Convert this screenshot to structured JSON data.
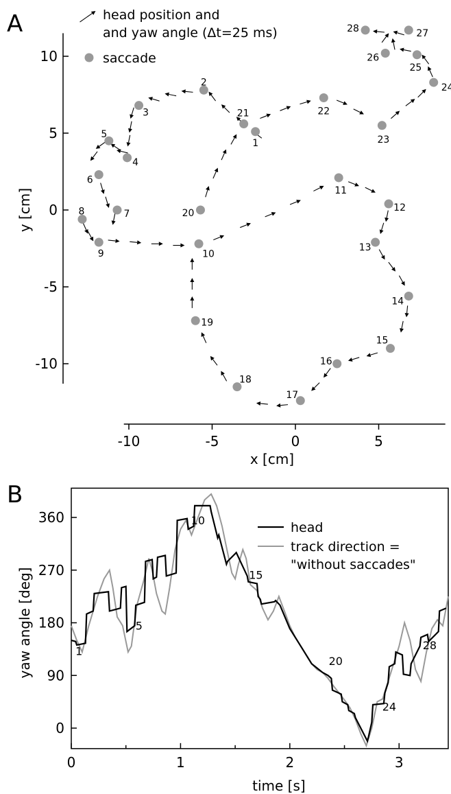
{
  "panel_a": {
    "letter": "A",
    "legend": {
      "arrow_line1": "head position and",
      "arrow_line2": "and yaw angle (Δt=25 ms)",
      "dot_label": "saccade"
    },
    "colors": {
      "arrows": "#000000",
      "saccade": "#999999"
    },
    "chart_data": {
      "type": "scatter",
      "xlabel": "x [cm]",
      "ylabel": "y [cm]",
      "xlim": [
        -10.3,
        9
      ],
      "ylim": [
        -11.3,
        11.5
      ],
      "xticks": [
        -10,
        -5,
        0,
        5
      ],
      "yticks": [
        -10,
        -5,
        0,
        5,
        10
      ],
      "grid": false,
      "saccades": [
        {
          "label": "1",
          "x": -2.4,
          "y": 5.1
        },
        {
          "label": "2",
          "x": -5.5,
          "y": 7.8
        },
        {
          "label": "3",
          "x": -9.4,
          "y": 6.8
        },
        {
          "label": "4",
          "x": -10.1,
          "y": 3.4
        },
        {
          "label": "5",
          "x": -11.2,
          "y": 4.5
        },
        {
          "label": "6",
          "x": -11.8,
          "y": 2.3
        },
        {
          "label": "7",
          "x": -10.7,
          "y": 0.0
        },
        {
          "label": "8",
          "x": -12.8,
          "y": -0.6
        },
        {
          "label": "9",
          "x": -11.8,
          "y": -2.1
        },
        {
          "label": "10",
          "x": -5.8,
          "y": -2.2
        },
        {
          "label": "11",
          "x": 2.6,
          "y": 2.1
        },
        {
          "label": "12",
          "x": 5.6,
          "y": 0.4
        },
        {
          "label": "13",
          "x": 4.8,
          "y": -2.1
        },
        {
          "label": "14",
          "x": 6.8,
          "y": -5.6
        },
        {
          "label": "15",
          "x": 5.7,
          "y": -9.0
        },
        {
          "label": "16",
          "x": 2.5,
          "y": -10.0
        },
        {
          "label": "17",
          "x": 0.3,
          "y": -12.4
        },
        {
          "label": "18",
          "x": -3.5,
          "y": -11.5
        },
        {
          "label": "19",
          "x": -6.0,
          "y": -7.2
        },
        {
          "label": "20",
          "x": -5.7,
          "y": 0.0
        },
        {
          "label": "21",
          "x": -3.1,
          "y": 5.6
        },
        {
          "label": "22",
          "x": 1.7,
          "y": 7.3
        },
        {
          "label": "23",
          "x": 5.2,
          "y": 5.5
        },
        {
          "label": "24",
          "x": 8.3,
          "y": 8.3
        },
        {
          "label": "25",
          "x": 7.3,
          "y": 10.1
        },
        {
          "label": "26",
          "x": 5.4,
          "y": 10.2
        },
        {
          "label": "27",
          "x": 6.8,
          "y": 11.7
        },
        {
          "label": "28",
          "x": 4.2,
          "y": 11.7
        }
      ],
      "arrows": [
        {
          "x": -2.3,
          "y": 4.9,
          "u": -0.8,
          "v": 0.6
        },
        {
          "x": -3.3,
          "y": 5.8,
          "u": -0.7,
          "v": 0.7
        },
        {
          "x": -4.2,
          "y": 6.6,
          "u": -0.7,
          "v": 0.7
        },
        {
          "x": -5.0,
          "y": 7.4,
          "u": -0.6,
          "v": 0.8
        },
        {
          "x": -6.5,
          "y": 7.7,
          "u": -1.0,
          "v": 0.1
        },
        {
          "x": -7.5,
          "y": 7.5,
          "u": -1.0,
          "v": 0.2
        },
        {
          "x": -8.5,
          "y": 7.2,
          "u": -1.0,
          "v": 0.3
        },
        {
          "x": -9.8,
          "y": 6.3,
          "u": -0.3,
          "v": -1.0
        },
        {
          "x": -9.9,
          "y": 5.4,
          "u": -0.2,
          "v": -1.0
        },
        {
          "x": -10.0,
          "y": 4.5,
          "u": -0.2,
          "v": -1.0
        },
        {
          "x": -10.4,
          "y": 3.8,
          "u": -0.8,
          "v": 0.2
        },
        {
          "x": -10.8,
          "y": 4.1,
          "u": -0.6,
          "v": 0.4
        },
        {
          "x": -11.7,
          "y": 4.2,
          "u": -0.7,
          "v": -0.5
        },
        {
          "x": -12.1,
          "y": 3.5,
          "u": -0.6,
          "v": -0.8
        },
        {
          "x": -11.6,
          "y": 1.4,
          "u": 0.3,
          "v": -1.0
        },
        {
          "x": -11.3,
          "y": 0.5,
          "u": 0.3,
          "v": -1.0
        },
        {
          "x": -10.9,
          "y": -0.6,
          "u": -0.2,
          "v": -1.0
        },
        {
          "x": -12.6,
          "y": -1.2,
          "u": 0.4,
          "v": -0.9
        },
        {
          "x": -12.3,
          "y": -1.7,
          "u": 0.5,
          "v": -0.9
        },
        {
          "x": -10.9,
          "y": -2.0,
          "u": 1.0,
          "v": -0.1
        },
        {
          "x": -9.6,
          "y": -2.1,
          "u": 1.0,
          "v": -0.1
        },
        {
          "x": -8.3,
          "y": -2.2,
          "u": 1.0,
          "v": 0.0
        },
        {
          "x": -7.0,
          "y": -2.3,
          "u": 1.0,
          "v": 0.0
        },
        {
          "x": -4.6,
          "y": -1.8,
          "u": 1.0,
          "v": 0.4
        },
        {
          "x": -3.0,
          "y": -1.0,
          "u": 1.0,
          "v": 0.4
        },
        {
          "x": -1.5,
          "y": -0.3,
          "u": 1.0,
          "v": 0.4
        },
        {
          "x": 0.0,
          "y": 0.5,
          "u": 1.0,
          "v": 0.4
        },
        {
          "x": 1.4,
          "y": 1.4,
          "u": 1.0,
          "v": 0.5
        },
        {
          "x": 3.5,
          "y": 1.7,
          "u": 1.0,
          "v": -0.4
        },
        {
          "x": 4.5,
          "y": 1.3,
          "u": 1.0,
          "v": -0.5
        },
        {
          "x": 5.5,
          "y": -0.4,
          "u": -0.2,
          "v": -1.0
        },
        {
          "x": 5.2,
          "y": -1.2,
          "u": -0.3,
          "v": -1.0
        },
        {
          "x": 5.2,
          "y": -2.9,
          "u": 0.5,
          "v": -0.9
        },
        {
          "x": 5.8,
          "y": -3.7,
          "u": 0.6,
          "v": -0.8
        },
        {
          "x": 6.4,
          "y": -4.6,
          "u": 0.5,
          "v": -0.9
        },
        {
          "x": 6.7,
          "y": -6.6,
          "u": -0.1,
          "v": -1.0
        },
        {
          "x": 6.4,
          "y": -7.6,
          "u": -0.2,
          "v": -1.0
        },
        {
          "x": 4.6,
          "y": -9.4,
          "u": -1.0,
          "v": -0.3
        },
        {
          "x": 3.5,
          "y": -9.7,
          "u": -1.0,
          "v": -0.3
        },
        {
          "x": 1.9,
          "y": -10.6,
          "u": -0.6,
          "v": -0.8
        },
        {
          "x": 1.2,
          "y": -11.5,
          "u": -0.7,
          "v": -0.7
        },
        {
          "x": -0.8,
          "y": -12.7,
          "u": -1.0,
          "v": -0.1
        },
        {
          "x": -2.0,
          "y": -12.6,
          "u": -1.0,
          "v": 0.1
        },
        {
          "x": -4.3,
          "y": -10.8,
          "u": -0.5,
          "v": 0.9
        },
        {
          "x": -4.9,
          "y": -9.8,
          "u": -0.6,
          "v": 0.8
        },
        {
          "x": -5.5,
          "y": -8.3,
          "u": -0.4,
          "v": 0.9
        },
        {
          "x": -6.2,
          "y": -6.0,
          "u": 0.0,
          "v": 1.0
        },
        {
          "x": -6.2,
          "y": -4.8,
          "u": 0.0,
          "v": 1.0
        },
        {
          "x": -6.2,
          "y": -3.5,
          "u": 0.0,
          "v": 1.0
        },
        {
          "x": -5.3,
          "y": 1.2,
          "u": 0.3,
          "v": 1.0
        },
        {
          "x": -4.8,
          "y": 2.4,
          "u": 0.4,
          "v": 0.9
        },
        {
          "x": -4.3,
          "y": 3.6,
          "u": 0.4,
          "v": 0.9
        },
        {
          "x": -3.7,
          "y": 4.6,
          "u": 0.5,
          "v": 0.9
        },
        {
          "x": -1.8,
          "y": 6.1,
          "u": 1.0,
          "v": 0.4
        },
        {
          "x": -0.6,
          "y": 6.6,
          "u": 1.0,
          "v": 0.4
        },
        {
          "x": 0.6,
          "y": 7.0,
          "u": 1.0,
          "v": 0.3
        },
        {
          "x": 2.8,
          "y": 7.0,
          "u": 1.0,
          "v": -0.4
        },
        {
          "x": 3.8,
          "y": 6.4,
          "u": 1.0,
          "v": -0.5
        },
        {
          "x": 6.0,
          "y": 6.2,
          "u": 0.8,
          "v": 0.7
        },
        {
          "x": 6.9,
          "y": 7.0,
          "u": 0.8,
          "v": 0.6
        },
        {
          "x": 7.6,
          "y": 7.6,
          "u": 0.7,
          "v": 0.7
        },
        {
          "x": 8.1,
          "y": 9.0,
          "u": -0.4,
          "v": 0.9
        },
        {
          "x": 7.8,
          "y": 9.8,
          "u": -0.6,
          "v": 0.8
        },
        {
          "x": 6.6,
          "y": 10.4,
          "u": -1.0,
          "v": 0.2
        },
        {
          "x": 5.9,
          "y": 10.8,
          "u": -0.2,
          "v": 1.0
        },
        {
          "x": 5.4,
          "y": 11.2,
          "u": 0.6,
          "v": 0.8
        },
        {
          "x": 6.2,
          "y": 11.5,
          "u": -1.0,
          "v": 0.3
        },
        {
          "x": 5.0,
          "y": 11.6,
          "u": -1.0,
          "v": 0.1
        }
      ]
    }
  },
  "panel_b": {
    "letter": "B",
    "legend": {
      "head": "head",
      "track_line1": "track direction =",
      "track_line2": "\"without saccades\""
    },
    "colors": {
      "head": "#000000",
      "track": "#999999"
    },
    "chart_data": {
      "type": "line",
      "xlabel": "time [s]",
      "ylabel": "yaw angle [deg]",
      "xlim": [
        0,
        3.45
      ],
      "ylim": [
        -35,
        410
      ],
      "xticks": [
        0,
        1,
        2,
        3
      ],
      "yticks": [
        0,
        90,
        180,
        270,
        360
      ],
      "grid": false,
      "annotations": [
        {
          "label": "1",
          "x": 0.07,
          "y": 125
        },
        {
          "label": "5",
          "x": 0.62,
          "y": 168
        },
        {
          "label": "10",
          "x": 1.16,
          "y": 348
        },
        {
          "label": "15",
          "x": 1.69,
          "y": 255
        },
        {
          "label": "20",
          "x": 2.42,
          "y": 108
        },
        {
          "label": "24",
          "x": 2.91,
          "y": 30
        },
        {
          "label": "28",
          "x": 3.28,
          "y": 135
        }
      ],
      "series": [
        {
          "name": "head",
          "x": [
            0,
            0.04,
            0.05,
            0.13,
            0.14,
            0.2,
            0.21,
            0.34,
            0.35,
            0.45,
            0.46,
            0.5,
            0.51,
            0.58,
            0.59,
            0.67,
            0.68,
            0.74,
            0.75,
            0.78,
            0.79,
            0.86,
            0.87,
            0.96,
            0.97,
            1.06,
            1.07,
            1.12,
            1.13,
            1.27,
            1.28,
            1.34,
            1.35,
            1.42,
            1.43,
            1.5,
            1.51,
            1.61,
            1.62,
            1.7,
            1.71,
            1.73,
            1.74,
            1.86,
            1.87,
            1.91,
            2.0,
            2.1,
            2.2,
            2.3,
            2.35,
            2.38,
            2.39,
            2.47,
            2.48,
            2.53,
            2.54,
            2.59,
            2.6,
            2.71,
            2.72,
            2.75,
            2.76,
            2.86,
            2.87,
            2.9,
            2.91,
            2.96,
            2.97,
            3.03,
            3.04,
            3.1,
            3.11,
            3.19,
            3.2,
            3.26,
            3.27,
            3.36,
            3.37,
            3.43
          ],
          "y": [
            150,
            148,
            142,
            145,
            195,
            200,
            230,
            233,
            200,
            205,
            240,
            242,
            165,
            175,
            210,
            215,
            285,
            288,
            255,
            258,
            292,
            295,
            260,
            265,
            355,
            358,
            340,
            345,
            380,
            380,
            370,
            325,
            330,
            280,
            285,
            298,
            300,
            260,
            250,
            247,
            225,
            220,
            212,
            216,
            218,
            210,
            170,
            140,
            110,
            95,
            90,
            85,
            65,
            58,
            45,
            40,
            30,
            25,
            18,
            -22,
            -15,
            10,
            40,
            42,
            60,
            78,
            105,
            110,
            130,
            125,
            92,
            90,
            110,
            140,
            155,
            160,
            148,
            165,
            200,
            205
          ]
        },
        {
          "name": "track direction = \"without saccades\"",
          "x": [
            0,
            0.05,
            0.1,
            0.16,
            0.24,
            0.3,
            0.35,
            0.38,
            0.42,
            0.47,
            0.52,
            0.55,
            0.6,
            0.66,
            0.71,
            0.74,
            0.78,
            0.83,
            0.86,
            0.9,
            0.95,
            1.0,
            1.05,
            1.1,
            1.16,
            1.22,
            1.28,
            1.33,
            1.38,
            1.43,
            1.47,
            1.5,
            1.53,
            1.57,
            1.6,
            1.64,
            1.7,
            1.75,
            1.8,
            1.85,
            1.9,
            1.95,
            2.0,
            2.05,
            2.1,
            2.15,
            2.2,
            2.25,
            2.3,
            2.35,
            2.4,
            2.45,
            2.5,
            2.55,
            2.6,
            2.65,
            2.7,
            2.75,
            2.8,
            2.85,
            2.9,
            2.95,
            3.0,
            3.05,
            3.1,
            3.15,
            3.2,
            3.25,
            3.3,
            3.35,
            3.4,
            3.45
          ],
          "y": [
            175,
            150,
            130,
            175,
            225,
            255,
            270,
            240,
            190,
            175,
            130,
            140,
            210,
            250,
            290,
            270,
            230,
            200,
            195,
            240,
            305,
            340,
            355,
            330,
            360,
            390,
            400,
            380,
            345,
            300,
            265,
            255,
            280,
            305,
            290,
            245,
            235,
            205,
            185,
            200,
            225,
            200,
            175,
            155,
            140,
            125,
            110,
            100,
            95,
            85,
            72,
            60,
            48,
            35,
            15,
            -10,
            -30,
            0,
            45,
            50,
            80,
            110,
            140,
            180,
            150,
            100,
            80,
            130,
            170,
            185,
            175,
            225
          ]
        }
      ]
    }
  }
}
